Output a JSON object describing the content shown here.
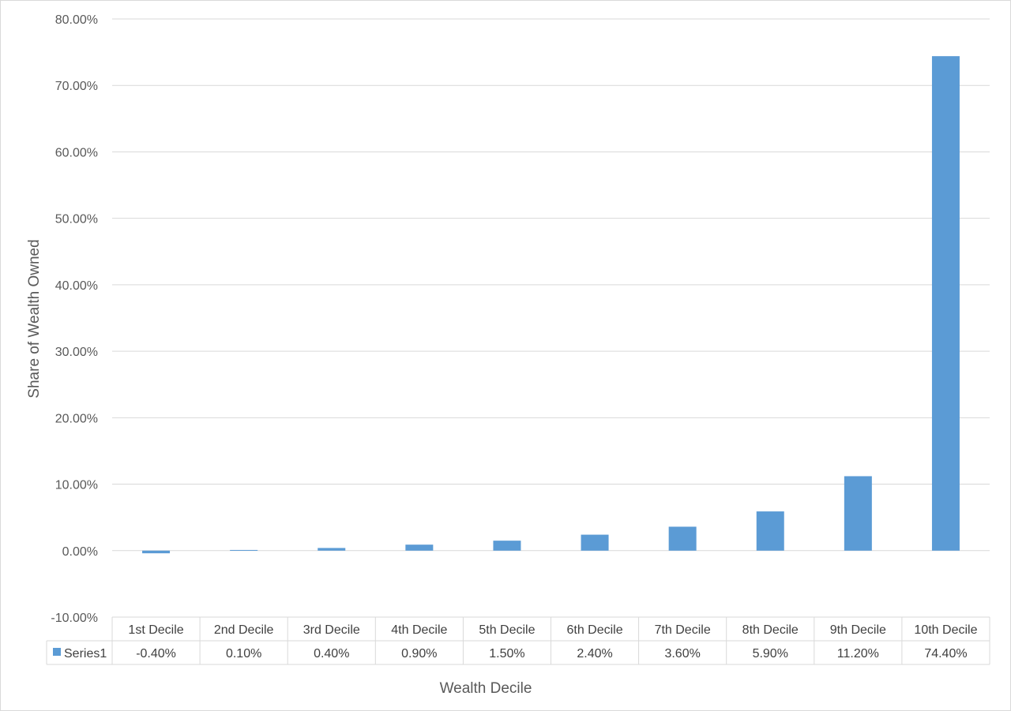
{
  "chart_data": {
    "type": "bar",
    "categories": [
      "1st Decile",
      "2nd Decile",
      "3rd Decile",
      "4th Decile",
      "5th Decile",
      "6th Decile",
      "7th Decile",
      "8th Decile",
      "9th Decile",
      "10th Decile"
    ],
    "series": [
      {
        "name": "Series1",
        "values": [
          -0.4,
          0.1,
          0.4,
          0.9,
          1.5,
          2.4,
          3.6,
          5.9,
          11.2,
          74.4
        ],
        "value_labels": [
          "-0.40%",
          "0.10%",
          "0.40%",
          "0.90%",
          "1.50%",
          "2.40%",
          "3.60%",
          "5.90%",
          "11.20%",
          "74.40%"
        ],
        "color": "#5b9bd5"
      }
    ],
    "xlabel": "Wealth Decile",
    "ylabel": "Share of Wealth Owned",
    "ylim": [
      -10,
      80
    ],
    "y_ticks": [
      80,
      70,
      60,
      50,
      40,
      30,
      20,
      10,
      0,
      -10
    ],
    "y_tick_labels": [
      "80.00%",
      "70.00%",
      "60.00%",
      "50.00%",
      "40.00%",
      "30.00%",
      "20.00%",
      "10.00%",
      "0.00%",
      "-10.00%"
    ],
    "grid": true,
    "data_table": true,
    "gridline_color": "#d9d9d9"
  }
}
